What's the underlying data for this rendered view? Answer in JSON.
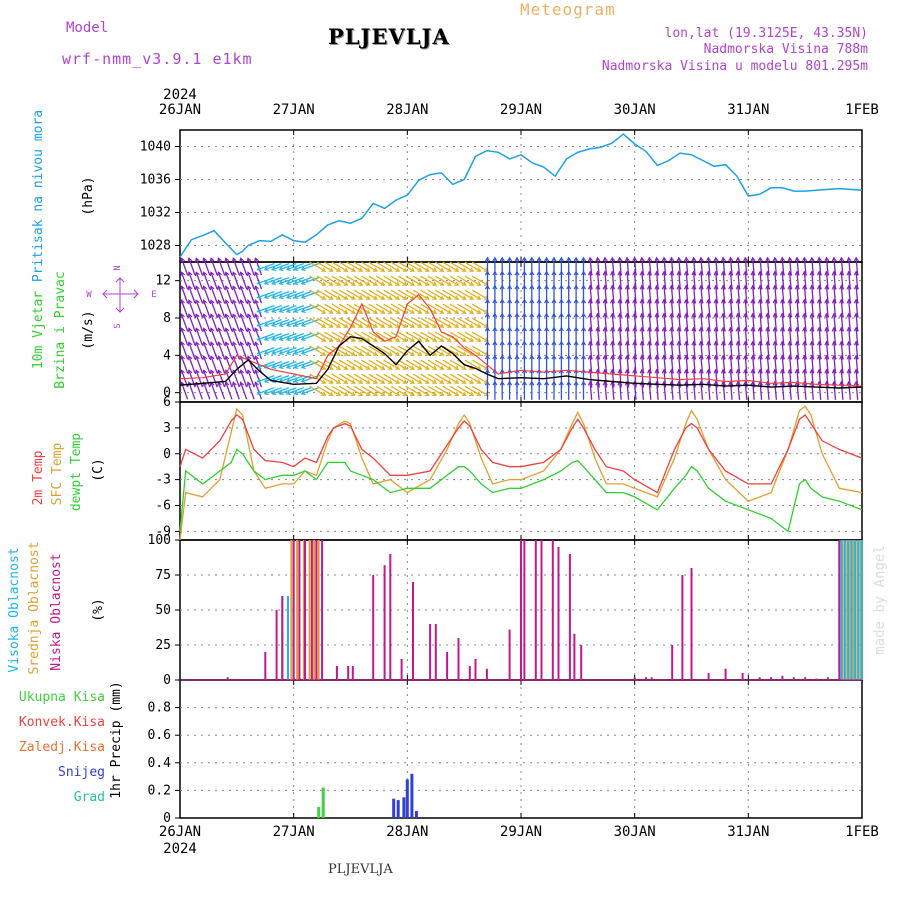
{
  "header": {
    "model_label": "Model",
    "model_name": "wrf-nmm_v3.9.1 e1km",
    "station": "PLJEVLJA",
    "product": "Meteogram",
    "coords": "lon,lat (19.3125E, 43.35N)",
    "elevation": "Nadmorska Visina 788m",
    "model_elevation": "Nadmorska Visina u modelu 801.295m"
  },
  "footer": {
    "station": "PLJEVLJA",
    "credit": "made by Angel"
  },
  "time_axis": {
    "year": "2024",
    "labels": [
      "26JAN",
      "27JAN",
      "28JAN",
      "29JAN",
      "30JAN",
      "31JAN",
      "1FEB"
    ]
  },
  "colors": {
    "pressure": "#1ea0e6",
    "t2m": "#f04040",
    "tsfc": "#e0a030",
    "dewpt": "#30d030",
    "cloud_high": "#20b4e8",
    "cloud_mid": "#e0a030",
    "cloud_low": "#c01890",
    "precip_total": "#40d040",
    "precip_conv": "#f04040",
    "precip_frozen": "#f07030",
    "snow": "#3040d0",
    "hail": "#20c0a0",
    "wind_speed": "#000000",
    "gust": "#f04040"
  },
  "chart_data": [
    {
      "type": "line",
      "title": "",
      "ylabel": [
        "Pritisak na nivou mora",
        "(hPa)"
      ],
      "ylim": [
        1026,
        1042
      ],
      "yticks": [
        1028,
        1032,
        1036,
        1040
      ],
      "x_unit": "days since 26JAN 00Z",
      "series": [
        {
          "name": "Pritisak na nivou mora",
          "x": [
            0,
            0.1,
            0.2,
            0.3,
            0.4,
            0.5,
            0.55,
            0.6,
            0.7,
            0.8,
            0.9,
            1,
            1.1,
            1.2,
            1.3,
            1.4,
            1.5,
            1.6,
            1.7,
            1.8,
            1.9,
            2,
            2.1,
            2.2,
            2.3,
            2.4,
            2.5,
            2.6,
            2.7,
            2.8,
            2.9,
            3,
            3.1,
            3.2,
            3.3,
            3.4,
            3.5,
            3.6,
            3.7,
            3.8,
            3.9,
            4,
            4.1,
            4.2,
            4.3,
            4.4,
            4.5,
            4.6,
            4.7,
            4.8,
            4.9,
            5,
            5.1,
            5.2,
            5.3,
            5.4,
            5.5,
            5.6,
            5.7,
            5.8,
            5.9,
            6
          ],
          "values": [
            1026.6,
            1028.7,
            1029.2,
            1029.8,
            1028.3,
            1026.9,
            1027.3,
            1028.0,
            1028.6,
            1028.5,
            1029.3,
            1028.6,
            1028.4,
            1029.3,
            1030.5,
            1031.0,
            1030.7,
            1031.3,
            1033.1,
            1032.5,
            1033.5,
            1034.1,
            1035.9,
            1036.6,
            1036.8,
            1035.4,
            1036.0,
            1038.8,
            1039.5,
            1039.3,
            1038.5,
            1039.0,
            1038.0,
            1037.5,
            1036.4,
            1038.5,
            1039.3,
            1039.7,
            1039.9,
            1040.4,
            1041.5,
            1040.3,
            1039.4,
            1037.7,
            1038.3,
            1039.2,
            1039.0,
            1038.3,
            1037.6,
            1037.8,
            1036.4,
            1034.0,
            1034.2,
            1035.0,
            1035.0,
            1034.6,
            1034.6,
            1034.7,
            1034.8,
            1034.9,
            1034.8,
            1034.7
          ]
        }
      ]
    },
    {
      "type": "line",
      "ylabel": [
        "10m Vjetar",
        "Brzina i Pravac",
        "(m/s)"
      ],
      "ylim": [
        -1,
        14
      ],
      "yticks": [
        0,
        4,
        8,
        12
      ],
      "direction_key": [
        "N",
        "W",
        "E",
        "S"
      ],
      "barb_rows_ms": [
        0.2,
        1.5,
        3,
        4.5,
        6,
        7.5,
        9,
        10.5,
        12,
        13.5
      ],
      "barb_direction_deg": [
        {
          "x_range": [
            0,
            0.7
          ],
          "deg": 110
        },
        {
          "x_range": [
            0.7,
            1.2
          ],
          "deg": 200
        },
        {
          "x_range": [
            1.2,
            2.7
          ],
          "deg": 330
        },
        {
          "x_range": [
            2.7,
            3.6
          ],
          "deg": 90
        },
        {
          "x_range": [
            3.6,
            6
          ],
          "deg": 95
        }
      ],
      "barb_speed_scale": [
        {
          "x_range": [
            0,
            0.7
          ],
          "color": "#8020c0"
        },
        {
          "x_range": [
            0.7,
            1.2
          ],
          "color": "#20b4e8"
        },
        {
          "x_range": [
            1.2,
            2.7
          ],
          "color": "#e0b020"
        },
        {
          "x_range": [
            2.7,
            3.6
          ],
          "color": "#3050e0"
        },
        {
          "x_range": [
            3.6,
            6
          ],
          "color": "#8020c0"
        }
      ],
      "series": [
        {
          "name": "wind_speed",
          "x": [
            0,
            0.2,
            0.4,
            0.5,
            0.6,
            0.7,
            0.8,
            1,
            1.2,
            1.3,
            1.4,
            1.5,
            1.6,
            1.7,
            1.8,
            1.9,
            2,
            2.1,
            2.2,
            2.3,
            2.4,
            2.5,
            2.6,
            2.7,
            2.8,
            3,
            3.2,
            3.4,
            3.6,
            3.8,
            4,
            4.2,
            4.4,
            4.6,
            4.8,
            5,
            5.2,
            5.4,
            5.6,
            5.8,
            6
          ],
          "values": [
            0.8,
            1.0,
            1.2,
            2.5,
            3.5,
            2.3,
            1.3,
            0.9,
            1.0,
            2.5,
            5.0,
            6.0,
            5.8,
            5.0,
            4.2,
            3.0,
            4.5,
            5.5,
            4.0,
            5.0,
            4.2,
            3.0,
            2.6,
            2.0,
            1.5,
            1.6,
            1.5,
            1.8,
            1.4,
            1.2,
            1.0,
            0.9,
            0.8,
            0.9,
            0.7,
            0.8,
            0.6,
            0.7,
            0.6,
            0.5,
            0.6
          ]
        },
        {
          "name": "gust",
          "x": [
            0,
            0.2,
            0.4,
            0.5,
            0.6,
            0.7,
            0.8,
            1,
            1.2,
            1.3,
            1.4,
            1.5,
            1.6,
            1.7,
            1.8,
            1.9,
            2,
            2.1,
            2.2,
            2.3,
            2.4,
            2.5,
            2.6,
            2.7,
            2.8,
            3,
            3.2,
            3.4,
            3.6,
            3.8,
            4,
            4.2,
            4.4,
            4.6,
            4.8,
            5,
            5.2,
            5.4,
            5.6,
            5.8,
            6
          ],
          "values": [
            1.5,
            1.6,
            2.0,
            4.0,
            3.5,
            3.0,
            2.5,
            2.0,
            1.5,
            4.0,
            5.0,
            7.0,
            9.5,
            6.5,
            5.5,
            6.0,
            9.5,
            10.5,
            9.0,
            6.5,
            6.0,
            4.8,
            4.0,
            3.0,
            2.0,
            2.4,
            2.2,
            2.4,
            2.2,
            2.0,
            1.8,
            1.6,
            1.4,
            1.5,
            1.2,
            1.3,
            1.0,
            1.1,
            0.9,
            0.8,
            0.7
          ]
        }
      ]
    },
    {
      "type": "line",
      "ylabel": [
        "2m Temp",
        "SFC Temp",
        "dewpt Temp",
        "(C)"
      ],
      "ylim": [
        -10,
        6
      ],
      "yticks": [
        -9,
        -6,
        -3,
        0,
        3,
        6
      ],
      "series": [
        {
          "name": "2m Temp",
          "x": [
            0,
            0.05,
            0.2,
            0.35,
            0.45,
            0.5,
            0.55,
            0.65,
            0.75,
            0.9,
            1,
            1.1,
            1.2,
            1.3,
            1.35,
            1.45,
            1.5,
            1.6,
            1.7,
            1.85,
            2,
            2.2,
            2.35,
            2.45,
            2.5,
            2.55,
            2.65,
            2.75,
            2.9,
            3,
            3.2,
            3.35,
            3.45,
            3.5,
            3.55,
            3.65,
            3.75,
            3.9,
            4,
            4.2,
            4.35,
            4.45,
            4.5,
            4.55,
            4.65,
            4.8,
            5,
            5.2,
            5.35,
            5.45,
            5.5,
            5.55,
            5.65,
            5.8,
            6
          ],
          "values": [
            -1.5,
            0.5,
            -0.5,
            1.5,
            3.8,
            4.5,
            4.0,
            0.5,
            -0.8,
            -1.0,
            -1.5,
            -0.5,
            -1.0,
            2.0,
            3.0,
            3.5,
            3.2,
            0.5,
            -0.5,
            -2.5,
            -2.5,
            -2.0,
            1.0,
            3.0,
            3.8,
            3.2,
            0.5,
            -1.0,
            -1.5,
            -1.5,
            -1.0,
            0.5,
            3.0,
            4.0,
            3.0,
            0.5,
            -1.5,
            -2.0,
            -3.0,
            -4.5,
            0.5,
            3.0,
            3.5,
            3.0,
            0.5,
            -2.0,
            -3.5,
            -3.5,
            0.5,
            4.0,
            4.5,
            3.5,
            1.5,
            0.5,
            -0.5
          ]
        },
        {
          "name": "SFC Temp",
          "x": [
            0,
            0.05,
            0.2,
            0.35,
            0.45,
            0.5,
            0.55,
            0.65,
            0.75,
            0.9,
            1,
            1.1,
            1.2,
            1.3,
            1.35,
            1.45,
            1.5,
            1.6,
            1.7,
            1.85,
            2,
            2.2,
            2.35,
            2.45,
            2.5,
            2.55,
            2.65,
            2.75,
            2.9,
            3,
            3.2,
            3.35,
            3.45,
            3.5,
            3.55,
            3.65,
            3.75,
            3.9,
            4,
            4.2,
            4.35,
            4.45,
            4.5,
            4.55,
            4.65,
            4.8,
            5,
            5.2,
            5.35,
            5.45,
            5.5,
            5.55,
            5.65,
            5.8,
            6
          ],
          "values": [
            -10.0,
            -4.5,
            -5.0,
            -3.0,
            2.5,
            5.2,
            4.5,
            -2.0,
            -4.0,
            -3.5,
            -3.5,
            -2.0,
            -2.5,
            1.5,
            3.0,
            3.8,
            3.5,
            -0.5,
            -3.5,
            -3.0,
            -4.5,
            -3.0,
            0.5,
            3.5,
            4.5,
            3.5,
            -0.5,
            -3.5,
            -3.0,
            -3.0,
            -2.0,
            0.5,
            3.5,
            4.8,
            3.5,
            -0.5,
            -3.5,
            -3.5,
            -4.0,
            -5.0,
            -0.5,
            3.5,
            5.0,
            4.0,
            0.5,
            -3.0,
            -5.5,
            -4.5,
            0.5,
            5.0,
            5.5,
            4.5,
            0,
            -4.0,
            -4.5
          ]
        },
        {
          "name": "dewpt Temp",
          "x": [
            0,
            0.05,
            0.2,
            0.35,
            0.45,
            0.5,
            0.55,
            0.65,
            0.75,
            0.9,
            1,
            1.1,
            1.2,
            1.3,
            1.35,
            1.45,
            1.5,
            1.6,
            1.7,
            1.85,
            2,
            2.2,
            2.35,
            2.45,
            2.5,
            2.55,
            2.65,
            2.75,
            2.9,
            3,
            3.2,
            3.35,
            3.45,
            3.5,
            3.55,
            3.65,
            3.75,
            3.9,
            4,
            4.2,
            4.35,
            4.45,
            4.5,
            4.55,
            4.65,
            4.8,
            5,
            5.2,
            5.35,
            5.45,
            5.5,
            5.55,
            5.65,
            5.8,
            6
          ],
          "values": [
            -9.0,
            -2.0,
            -3.5,
            -2.0,
            -1.0,
            0.5,
            0,
            -2.0,
            -3.0,
            -2.5,
            -2.5,
            -2.0,
            -3.0,
            -1.0,
            -1.0,
            -1.0,
            -2.0,
            -2.5,
            -3.0,
            -4.5,
            -4.0,
            -4.0,
            -2.5,
            -1.5,
            -1.5,
            -2.0,
            -3.5,
            -4.5,
            -4.0,
            -4.0,
            -3.0,
            -2.0,
            -1.0,
            -0.8,
            -1.5,
            -3.0,
            -4.5,
            -4.5,
            -5.0,
            -6.5,
            -4.0,
            -2.5,
            -1.5,
            -2.0,
            -4.0,
            -5.5,
            -6.5,
            -7.5,
            -9.0,
            -3.5,
            -3.0,
            -4.0,
            -5.0,
            -5.5,
            -6.5
          ]
        }
      ]
    },
    {
      "type": "bar",
      "ylabel": [
        "Visoka Oblacnost",
        "Srednja Oblacnost",
        "Niska Oblacnost",
        "(%)"
      ],
      "ylim": [
        0,
        100
      ],
      "yticks": [
        0,
        25,
        50,
        75,
        100
      ],
      "series": [
        {
          "name": "Visoka Oblacnost",
          "x": [
            0.9,
            0.95,
            5.82,
            5.85,
            5.88,
            5.91,
            5.94,
            5.97,
            6.0
          ],
          "values": [
            60,
            60,
            100,
            100,
            100,
            100,
            100,
            100,
            100
          ]
        },
        {
          "name": "Srednja Oblacnost",
          "x": [
            0.9,
            0.98,
            1.03,
            1.09,
            1.14,
            1.18,
            1.22,
            5.83,
            5.87,
            5.9,
            5.93,
            5.96,
            5.99
          ],
          "values": [
            35,
            100,
            100,
            100,
            100,
            100,
            100,
            100,
            100,
            100,
            100,
            100,
            100
          ]
        },
        {
          "name": "Niska Oblacnost",
          "x": [
            0.42,
            0.75,
            0.85,
            0.9,
            1.0,
            1.05,
            1.1,
            1.16,
            1.2,
            1.25,
            1.38,
            1.48,
            1.52,
            1.7,
            1.8,
            1.85,
            1.95,
            2.05,
            2.2,
            2.25,
            2.35,
            2.45,
            2.55,
            2.6,
            2.7,
            2.9,
            3.0,
            3.03,
            3.13,
            3.18,
            3.28,
            3.33,
            3.43,
            3.47,
            3.53,
            4.0,
            4.1,
            4.15,
            4.33,
            4.42,
            4.5,
            4.65,
            4.8,
            4.95,
            5.1,
            5.2,
            5.3,
            5.4,
            5.5,
            5.6,
            5.7,
            5.8
          ],
          "values": [
            2,
            20,
            50,
            60,
            100,
            100,
            100,
            100,
            100,
            100,
            10,
            10,
            10,
            75,
            82,
            90,
            15,
            70,
            40,
            40,
            20,
            30,
            10,
            15,
            8,
            36,
            100,
            100,
            100,
            100,
            100,
            95,
            90,
            33,
            25,
            2,
            2,
            2,
            25,
            75,
            80,
            5,
            8,
            5,
            2,
            2,
            3,
            2,
            2,
            1,
            2,
            100
          ]
        }
      ]
    },
    {
      "type": "bar",
      "ylabel": [
        "1hr Precip (mm)"
      ],
      "legend": [
        "Ukupna Kisa",
        "Konvek.Kisa",
        "Zaledj.Kisa",
        "Snijeg",
        "Grad"
      ],
      "ylim": [
        0,
        1.0
      ],
      "yticks": [
        0,
        0.2,
        0.4,
        0.6,
        0.8
      ],
      "series": [
        {
          "name": "Ukupna Kisa",
          "x": [
            1.22,
            1.26
          ],
          "values": [
            0.08,
            0.22
          ]
        },
        {
          "name": "Snijeg",
          "x": [
            1.88,
            1.92,
            1.97,
            2.0,
            2.04,
            2.08
          ],
          "values": [
            0.14,
            0.13,
            0.15,
            0.28,
            0.32,
            0.05
          ]
        }
      ]
    }
  ]
}
